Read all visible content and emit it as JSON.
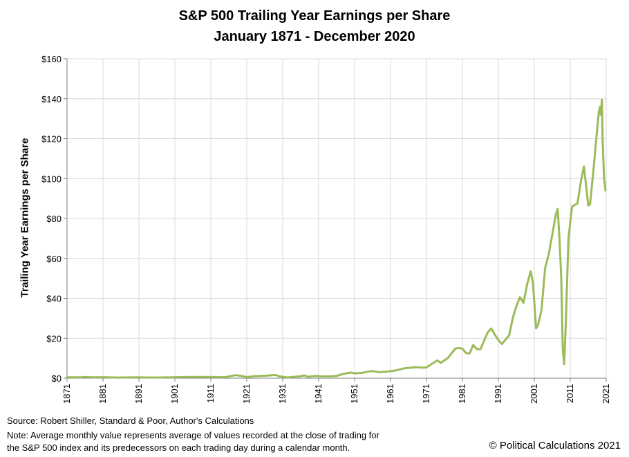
{
  "chart_data": {
    "type": "line",
    "title": "S&P 500 Trailing Year Earnings per Share",
    "subtitle": "January 1871 - December 2020",
    "xlabel": "",
    "ylabel": "Trailing Year Earnings per Share",
    "xlim": [
      1871,
      2021
    ],
    "ylim": [
      0,
      160
    ],
    "x_ticks": [
      "1871",
      "1881",
      "1891",
      "1901",
      "1911",
      "1921",
      "1931",
      "1941",
      "1951",
      "1961",
      "1971",
      "1981",
      "1991",
      "2001",
      "2011",
      "2021"
    ],
    "y_ticks": [
      "$0",
      "$20",
      "$40",
      "$60",
      "$80",
      "$100",
      "$120",
      "$140",
      "$160"
    ],
    "grid": true,
    "line_color": "#9bbb59",
    "series": [
      {
        "x": [
          1871,
          1875,
          1876,
          1878,
          1881,
          1882,
          1885,
          1890,
          1895,
          1900,
          1905,
          1910,
          1915,
          1916,
          1917,
          1918,
          1920,
          1921,
          1923,
          1926,
          1929,
          1930,
          1932,
          1933,
          1936,
          1937,
          1938,
          1940,
          1942,
          1944,
          1946,
          1948,
          1950,
          1951,
          1953,
          1955,
          1956,
          1958,
          1960,
          1962,
          1965,
          1968,
          1970,
          1971,
          1974,
          1975,
          1977,
          1979,
          1980,
          1981,
          1982,
          1983,
          1984,
          1985,
          1986,
          1988,
          1989,
          1990,
          1991,
          1992,
          1994,
          1995,
          1996,
          1997,
          1998,
          1999,
          2000,
          2000.6,
          2001,
          2001.5,
          2002,
          2003,
          2004,
          2005,
          2006,
          2007,
          2007.5,
          2008,
          2008.5,
          2008.9,
          2009.3,
          2009.8,
          2010.5,
          2011.5,
          2012.5,
          2013,
          2014,
          2014.8,
          2015.5,
          2016,
          2016.5,
          2017.5,
          2018.5,
          2019,
          2019.3,
          2019.5,
          2019.8,
          2020,
          2020.4,
          2020.8
        ],
        "y": [
          0.4,
          0.4,
          0.6,
          0.4,
          0.5,
          0.4,
          0.3,
          0.4,
          0.3,
          0.4,
          0.6,
          0.6,
          0.5,
          0.9,
          1.2,
          1.5,
          1.0,
          0.5,
          1.0,
          1.2,
          1.6,
          1.0,
          0.4,
          0.5,
          1.0,
          1.4,
          0.7,
          1.1,
          0.9,
          0.9,
          1.1,
          2.2,
          2.8,
          2.4,
          2.6,
          3.4,
          3.5,
          3.0,
          3.3,
          3.7,
          5.0,
          5.5,
          5.3,
          5.4,
          8.9,
          7.7,
          10.2,
          14.8,
          15.1,
          14.8,
          12.6,
          12.4,
          16.6,
          14.6,
          14.5,
          22.8,
          24.9,
          21.9,
          19.0,
          17.1,
          21.5,
          30.0,
          36.0,
          40.6,
          37.7,
          47.0,
          53.5,
          48.0,
          38.0,
          25.0,
          26.5,
          34.0,
          55.0,
          62.0,
          72.0,
          82.0,
          84.8,
          70.0,
          50.0,
          15.0,
          7.0,
          30.0,
          70.0,
          86.0,
          87.0,
          87.5,
          99.0,
          106.0,
          95.0,
          86.5,
          87.0,
          105.0,
          125.0,
          134.0,
          136.0,
          132.0,
          139.5,
          120.0,
          100.0,
          94.0
        ]
      }
    ]
  },
  "footer": {
    "source": "Source: Robert Shiller, Standard & Poor, Author's Calculations",
    "note_line1": "Note: Average monthly value represents average of values recorded at the close of trading for",
    "note_line2": "the S&P 500 index and its predecessors on each trading day during a calendar month.",
    "copyright": "© Political Calculations 2021"
  }
}
